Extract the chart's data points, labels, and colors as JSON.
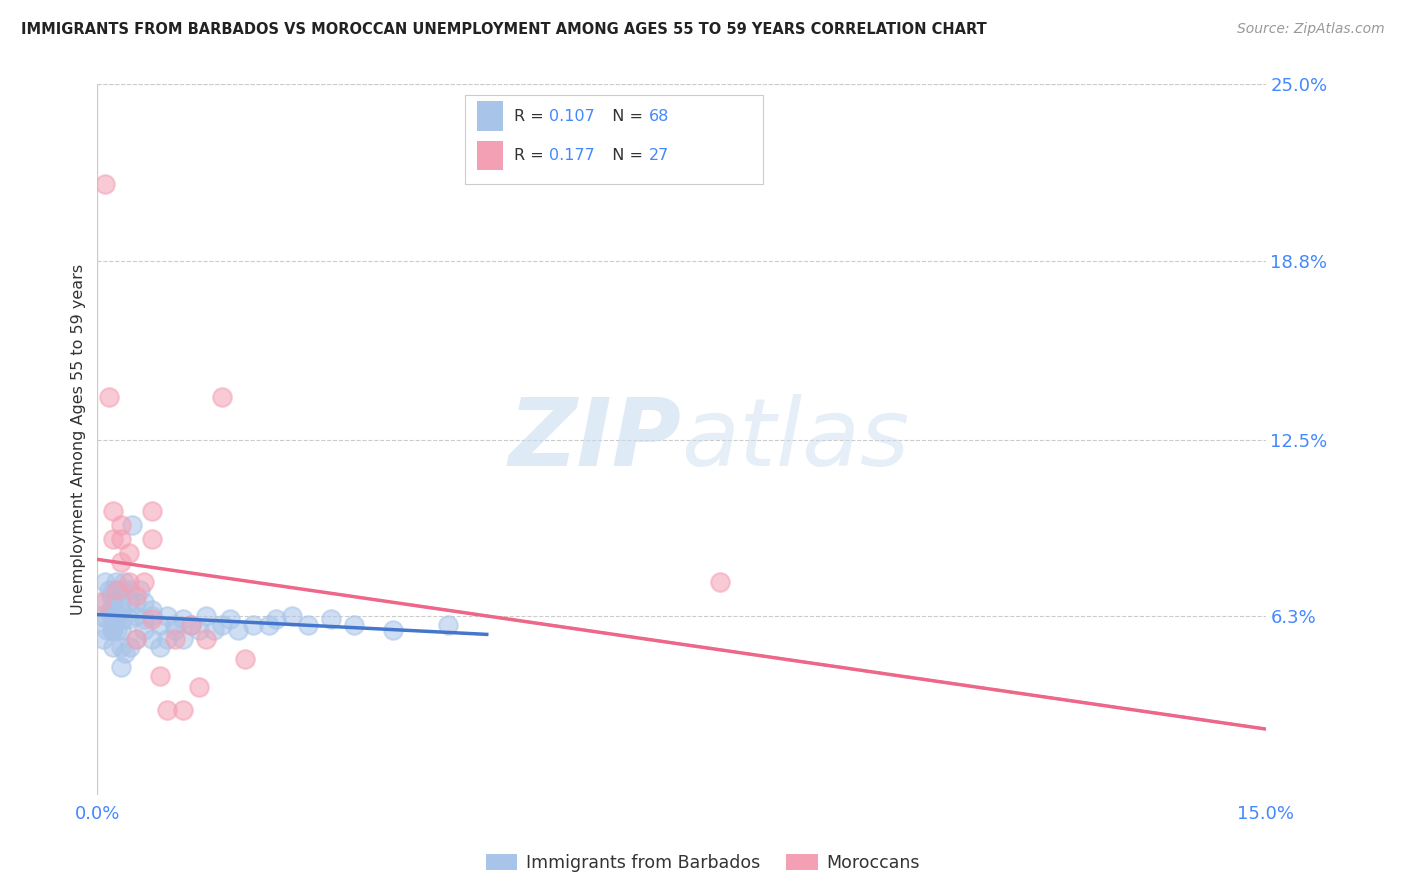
{
  "title": "IMMIGRANTS FROM BARBADOS VS MOROCCAN UNEMPLOYMENT AMONG AGES 55 TO 59 YEARS CORRELATION CHART",
  "source": "Source: ZipAtlas.com",
  "ylabel": "Unemployment Among Ages 55 to 59 years",
  "xlim": [
    0.0,
    0.15
  ],
  "ylim": [
    0.0,
    0.25
  ],
  "ytick_labels_right": [
    "6.3%",
    "12.5%",
    "18.8%",
    "25.0%"
  ],
  "ytick_vals_right": [
    0.063,
    0.125,
    0.188,
    0.25
  ],
  "watermark_zip": "ZIP",
  "watermark_atlas": "atlas",
  "series1_color": "#a8c4e8",
  "series2_color": "#f4a0b4",
  "line1_color": "#4477cc",
  "line2_color": "#ee6688",
  "line_dash_color": "#aabbcc",
  "title_color": "#222222",
  "axis_label_color": "#333333",
  "tick_label_color": "#4488ff",
  "grid_color": "#cccccc",
  "background_color": "#ffffff",
  "legend_R1": "0.107",
  "legend_N1": "68",
  "legend_R2": "0.177",
  "legend_N2": "27",
  "barbados_x": [
    0.0005,
    0.0007,
    0.001,
    0.001,
    0.0012,
    0.0013,
    0.0015,
    0.0016,
    0.0017,
    0.0018,
    0.0019,
    0.002,
    0.002,
    0.002,
    0.002,
    0.0022,
    0.0023,
    0.0024,
    0.0025,
    0.0025,
    0.003,
    0.003,
    0.003,
    0.003,
    0.003,
    0.0032,
    0.0033,
    0.0034,
    0.0035,
    0.004,
    0.004,
    0.004,
    0.0042,
    0.0045,
    0.005,
    0.005,
    0.005,
    0.0055,
    0.006,
    0.006,
    0.006,
    0.007,
    0.007,
    0.007,
    0.008,
    0.008,
    0.009,
    0.009,
    0.01,
    0.01,
    0.011,
    0.011,
    0.012,
    0.013,
    0.014,
    0.015,
    0.016,
    0.017,
    0.018,
    0.02,
    0.022,
    0.023,
    0.025,
    0.027,
    0.03,
    0.033,
    0.038,
    0.045
  ],
  "barbados_y": [
    0.063,
    0.055,
    0.075,
    0.068,
    0.058,
    0.062,
    0.072,
    0.065,
    0.07,
    0.063,
    0.058,
    0.072,
    0.065,
    0.058,
    0.052,
    0.068,
    0.062,
    0.075,
    0.063,
    0.058,
    0.072,
    0.065,
    0.058,
    0.045,
    0.052,
    0.068,
    0.062,
    0.075,
    0.05,
    0.062,
    0.068,
    0.072,
    0.052,
    0.095,
    0.063,
    0.068,
    0.055,
    0.072,
    0.068,
    0.062,
    0.058,
    0.055,
    0.063,
    0.065,
    0.052,
    0.06,
    0.055,
    0.063,
    0.06,
    0.058,
    0.062,
    0.055,
    0.06,
    0.058,
    0.063,
    0.058,
    0.06,
    0.062,
    0.058,
    0.06,
    0.06,
    0.062,
    0.063,
    0.06,
    0.062,
    0.06,
    0.058,
    0.06
  ],
  "moroccan_x": [
    0.0005,
    0.001,
    0.0015,
    0.002,
    0.002,
    0.0025,
    0.003,
    0.003,
    0.003,
    0.004,
    0.004,
    0.005,
    0.005,
    0.006,
    0.007,
    0.007,
    0.007,
    0.008,
    0.009,
    0.01,
    0.011,
    0.012,
    0.013,
    0.014,
    0.016,
    0.019,
    0.08
  ],
  "moroccan_y": [
    0.068,
    0.215,
    0.14,
    0.09,
    0.1,
    0.072,
    0.09,
    0.095,
    0.082,
    0.075,
    0.085,
    0.07,
    0.055,
    0.075,
    0.062,
    0.09,
    0.1,
    0.042,
    0.03,
    0.055,
    0.03,
    0.06,
    0.038,
    0.055,
    0.14,
    0.048,
    0.075
  ],
  "line1_x0": 0.0,
  "line1_x1": 0.05,
  "line2_x0": 0.0,
  "line2_x1": 0.15
}
